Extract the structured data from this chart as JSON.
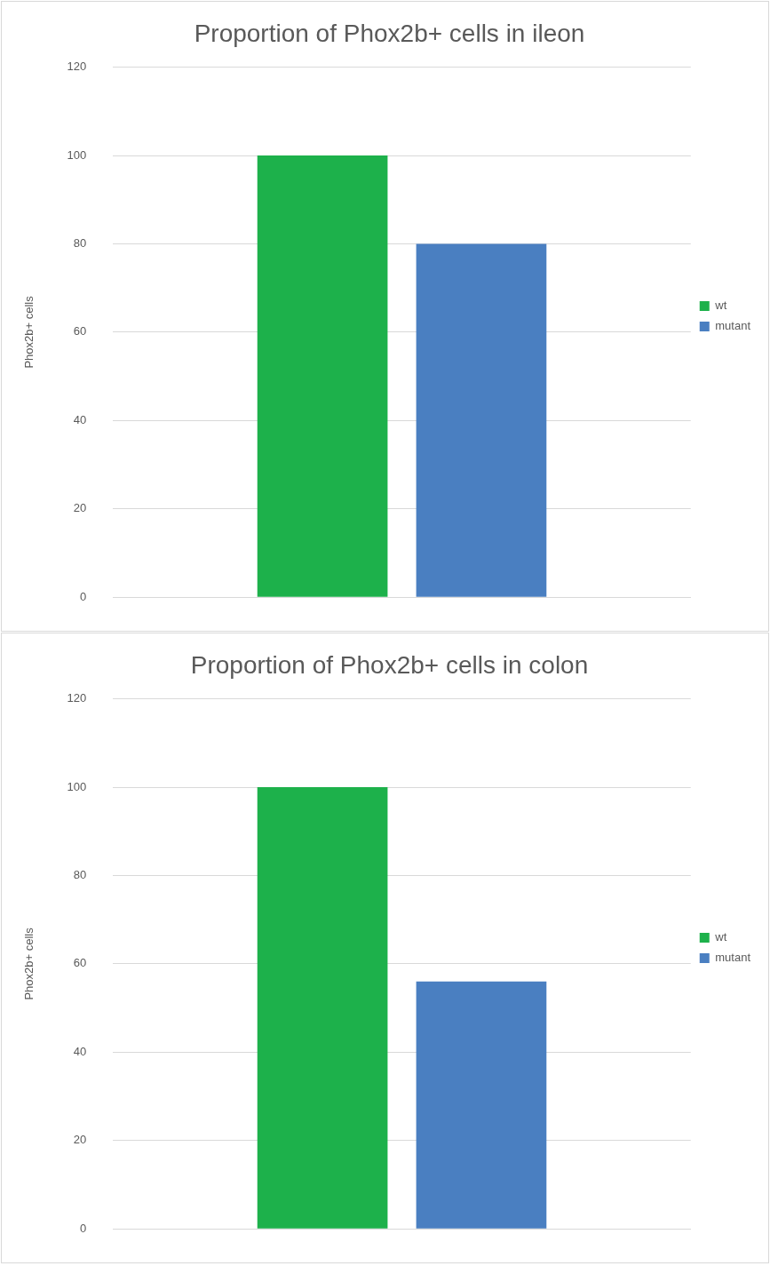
{
  "chart_data": [
    {
      "type": "bar",
      "title": "Proportion of Phox2b+ cells in ileon",
      "ylabel": "Phox2b+ cells",
      "categories": [
        null
      ],
      "series": [
        {
          "name": "wt",
          "color": "#1db14b",
          "values": [
            100
          ]
        },
        {
          "name": "mutant",
          "color": "#4a7fc1",
          "values": [
            80
          ]
        }
      ],
      "ylim": [
        0,
        120
      ],
      "yticks": [
        0,
        20,
        40,
        60,
        80,
        100,
        120
      ],
      "grid": "y",
      "legend": "right"
    },
    {
      "type": "bar",
      "title": "Proportion of Phox2b+ cells in colon",
      "ylabel": "Phox2b+ cells",
      "categories": [
        null
      ],
      "series": [
        {
          "name": "wt",
          "color": "#1db14b",
          "values": [
            100
          ]
        },
        {
          "name": "mutant",
          "color": "#4a7fc1",
          "values": [
            56
          ]
        }
      ],
      "ylim": [
        0,
        120
      ],
      "yticks": [
        0,
        20,
        40,
        60,
        80,
        100,
        120
      ],
      "grid": "y",
      "legend": "right"
    }
  ]
}
